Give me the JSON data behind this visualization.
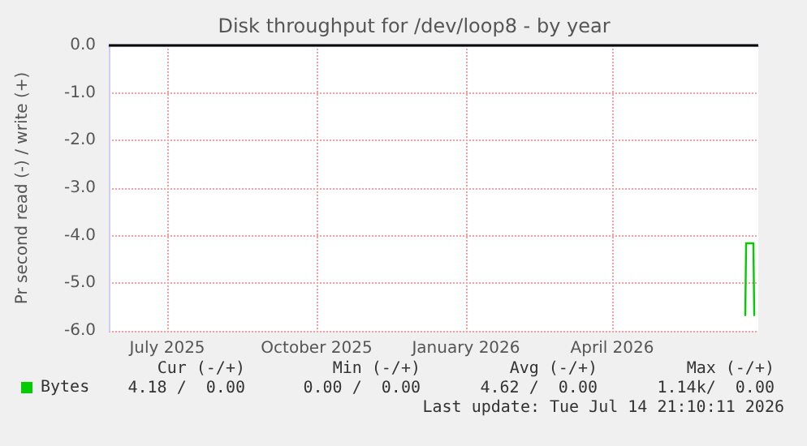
{
  "chart_data": {
    "type": "line",
    "title": "Disk throughput for /dev/loop8 - by year",
    "ylabel": "Pr second read (-) / write (+)",
    "x": [
      "2026-06-22T00:00",
      "2026-06-22T12:00",
      "2026-06-27T00:00",
      "2026-06-27T12:00"
    ],
    "series": [
      {
        "name": "Bytes",
        "color": "#00cc00",
        "values": [
          -5.67,
          -4.16,
          -4.16,
          -5.67
        ]
      }
    ],
    "xlim": [
      "2025-05-26",
      "2026-06-30"
    ],
    "xticks": [
      {
        "value": "2025-07-01",
        "label": "July 2025"
      },
      {
        "value": "2025-10-01",
        "label": "October 2025"
      },
      {
        "value": "2026-01-01",
        "label": "January 2026"
      },
      {
        "value": "2026-04-01",
        "label": "April 2026"
      }
    ],
    "ylim": [
      -6,
      0
    ],
    "yticks": [
      {
        "value": -6,
        "label": "-6.0"
      },
      {
        "value": -5,
        "label": "-5.0"
      },
      {
        "value": -4,
        "label": "-4.0"
      },
      {
        "value": -3,
        "label": "-3.0"
      },
      {
        "value": -2,
        "label": "-2.0"
      },
      {
        "value": -1,
        "label": "-1.0"
      },
      {
        "value": 0,
        "label": "0.0"
      }
    ],
    "ref_lines": [
      {
        "axis": "y",
        "value": 0,
        "color": "#000000"
      }
    ],
    "grid": true,
    "legend": "bottom left",
    "marker": "none",
    "line_style": "solid",
    "annotations": [
      "Cur (-/+)",
      "Min (-/+)",
      "Avg (-/+)",
      "Max (-/+)",
      "4.18 /  0.00",
      "0.00 /  0.00",
      "4.62 /  0.00",
      "1.14k/  0.00",
      "Last update: Tue Jul 14 21:10:11 2026"
    ]
  }
}
